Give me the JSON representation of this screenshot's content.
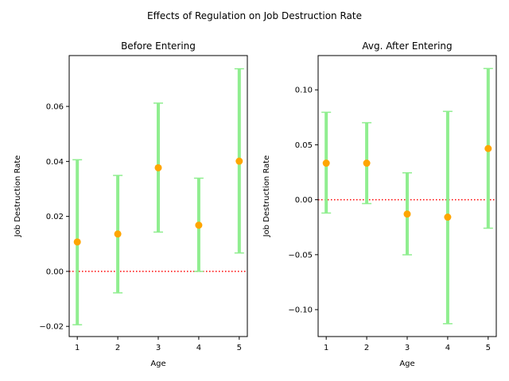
{
  "figure": {
    "title": "Effects of Regulation on Job Destruction Rate"
  },
  "colors": {
    "marker": "#ffa500",
    "errorbar": "#90ee90",
    "zero_line": "#ff0000",
    "axes": "#000000"
  },
  "chart_data": [
    {
      "type": "scatter",
      "title": "Before Entering",
      "xlabel": "Age",
      "ylabel": "Job Destruction Rate",
      "x": [
        1,
        2,
        3,
        4,
        5
      ],
      "y": [
        0.0107,
        0.0136,
        0.0377,
        0.0168,
        0.0401
      ],
      "ci_low": [
        -0.0194,
        -0.0078,
        0.0143,
        0.0,
        0.0067
      ],
      "ci_high": [
        0.0406,
        0.0349,
        0.0612,
        0.0339,
        0.0737
      ],
      "xlim": [
        0.8,
        5.2
      ],
      "ylim": [
        -0.0237,
        0.0785
      ],
      "xticks": [
        1,
        2,
        3,
        4,
        5
      ],
      "xticklabels": [
        "1",
        "2",
        "3",
        "4",
        "5"
      ],
      "yticks": [
        -0.02,
        0.0,
        0.02,
        0.04,
        0.06
      ],
      "yticklabels": [
        "−0.02",
        "0.00",
        "0.02",
        "0.04",
        "0.06"
      ],
      "reference_line": 0,
      "grid": false,
      "legend": "none"
    },
    {
      "type": "scatter",
      "title": "Avg. After Entering",
      "xlabel": "Age",
      "ylabel": "Job Destruction Rate",
      "x": [
        1,
        2,
        3,
        4,
        5
      ],
      "y": [
        0.0333,
        0.0333,
        -0.013,
        -0.0158,
        0.0466
      ],
      "ci_low": [
        -0.0121,
        -0.0035,
        -0.0501,
        -0.1128,
        -0.0259
      ],
      "ci_high": [
        0.0796,
        0.0701,
        0.0245,
        0.0804,
        0.1194
      ],
      "xlim": [
        0.8,
        5.2
      ],
      "ylim": [
        -0.1245,
        0.1312
      ],
      "xticks": [
        1,
        2,
        3,
        4,
        5
      ],
      "xticklabels": [
        "1",
        "2",
        "3",
        "4",
        "5"
      ],
      "yticks": [
        -0.1,
        -0.05,
        0.0,
        0.05,
        0.1
      ],
      "yticklabels": [
        "−0.10",
        "−0.05",
        "0.00",
        "0.05",
        "0.10"
      ],
      "reference_line": 0,
      "grid": false,
      "legend": "none"
    }
  ]
}
